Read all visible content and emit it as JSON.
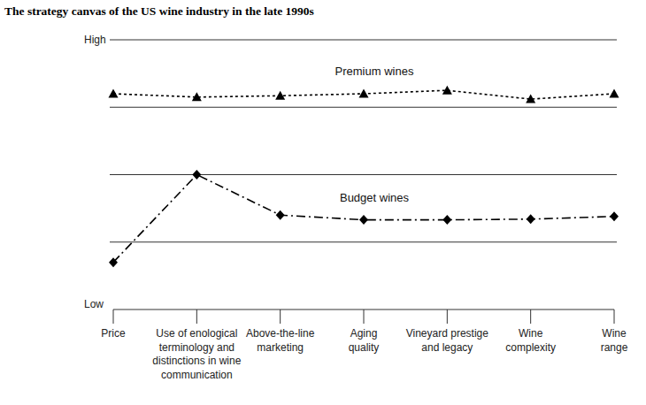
{
  "chart_data": {
    "type": "line",
    "title": "The strategy canvas of the US wine industry in the late 1990s",
    "categories": [
      "Price",
      "Use of enological\nterminology and\ndistinctions in wine\ncommunication",
      "Above-the-line\nmarketing",
      "Aging\nquality",
      "Vineyard prestige\nand legacy",
      "Wine\ncomplexity",
      "Wine\nrange"
    ],
    "series": [
      {
        "name": "Premium wines",
        "color": "#000000",
        "marker": "triangle",
        "line_style": "dotted",
        "values": [
          3.2,
          3.15,
          3.17,
          3.2,
          3.25,
          3.12,
          3.2
        ]
      },
      {
        "name": "Budget wines",
        "color": "#000000",
        "marker": "diamond",
        "line_style": "dashdot",
        "values": [
          0.7,
          2.0,
          1.4,
          1.33,
          1.33,
          1.34,
          1.38
        ]
      }
    ],
    "ylim": [
      0,
      4
    ],
    "yticks": [
      {
        "value": 0,
        "label": "Low"
      },
      {
        "value": 1,
        "label": null
      },
      {
        "value": 2,
        "label": null
      },
      {
        "value": 3,
        "label": null
      },
      {
        "value": 4,
        "label": "High"
      }
    ],
    "grid": true
  }
}
